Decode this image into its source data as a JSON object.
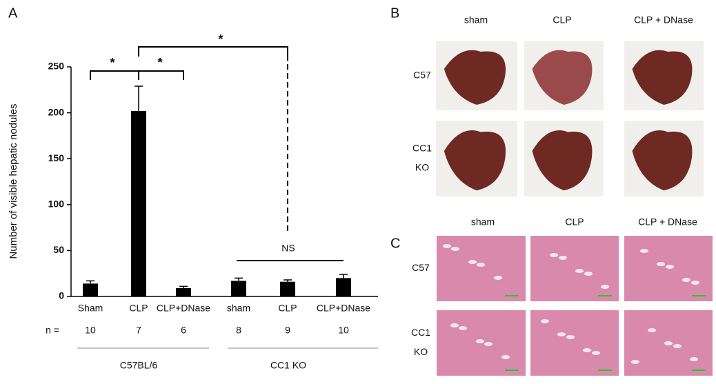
{
  "panel_labels": [
    "A",
    "B",
    "C"
  ],
  "chart_data": {
    "type": "bar",
    "y_label": "Number of visible hepatic nodules",
    "categories": [
      "Sham",
      "CLP",
      "CLP+DNase",
      "sham",
      "CLP",
      "CLP+DNase"
    ],
    "values": [
      14,
      202,
      9,
      17,
      16,
      20
    ],
    "errors": [
      3,
      27,
      2,
      3,
      2,
      4
    ],
    "color": "#000000",
    "ylim": [
      0,
      250
    ],
    "yticks": [
      0,
      50,
      100,
      150,
      200,
      250
    ],
    "n_label": "n =",
    "n_values": [
      10,
      7,
      6,
      8,
      9,
      10
    ],
    "groups": [
      "C57BL/6",
      "CC1 KO"
    ],
    "annotations": [
      "*",
      "*",
      "*",
      "NS"
    ]
  },
  "photo_panels": [
    {
      "columns": [
        "sham",
        "CLP",
        "CLP + DNase"
      ],
      "rows": [
        [
          "C57"
        ],
        [
          "CC1",
          "KO"
        ]
      ]
    },
    {
      "columns": [
        "sham",
        "CLP",
        "CLP + DNase"
      ],
      "rows": [
        [
          "C57"
        ],
        [
          "CC1",
          "KO"
        ]
      ]
    }
  ]
}
